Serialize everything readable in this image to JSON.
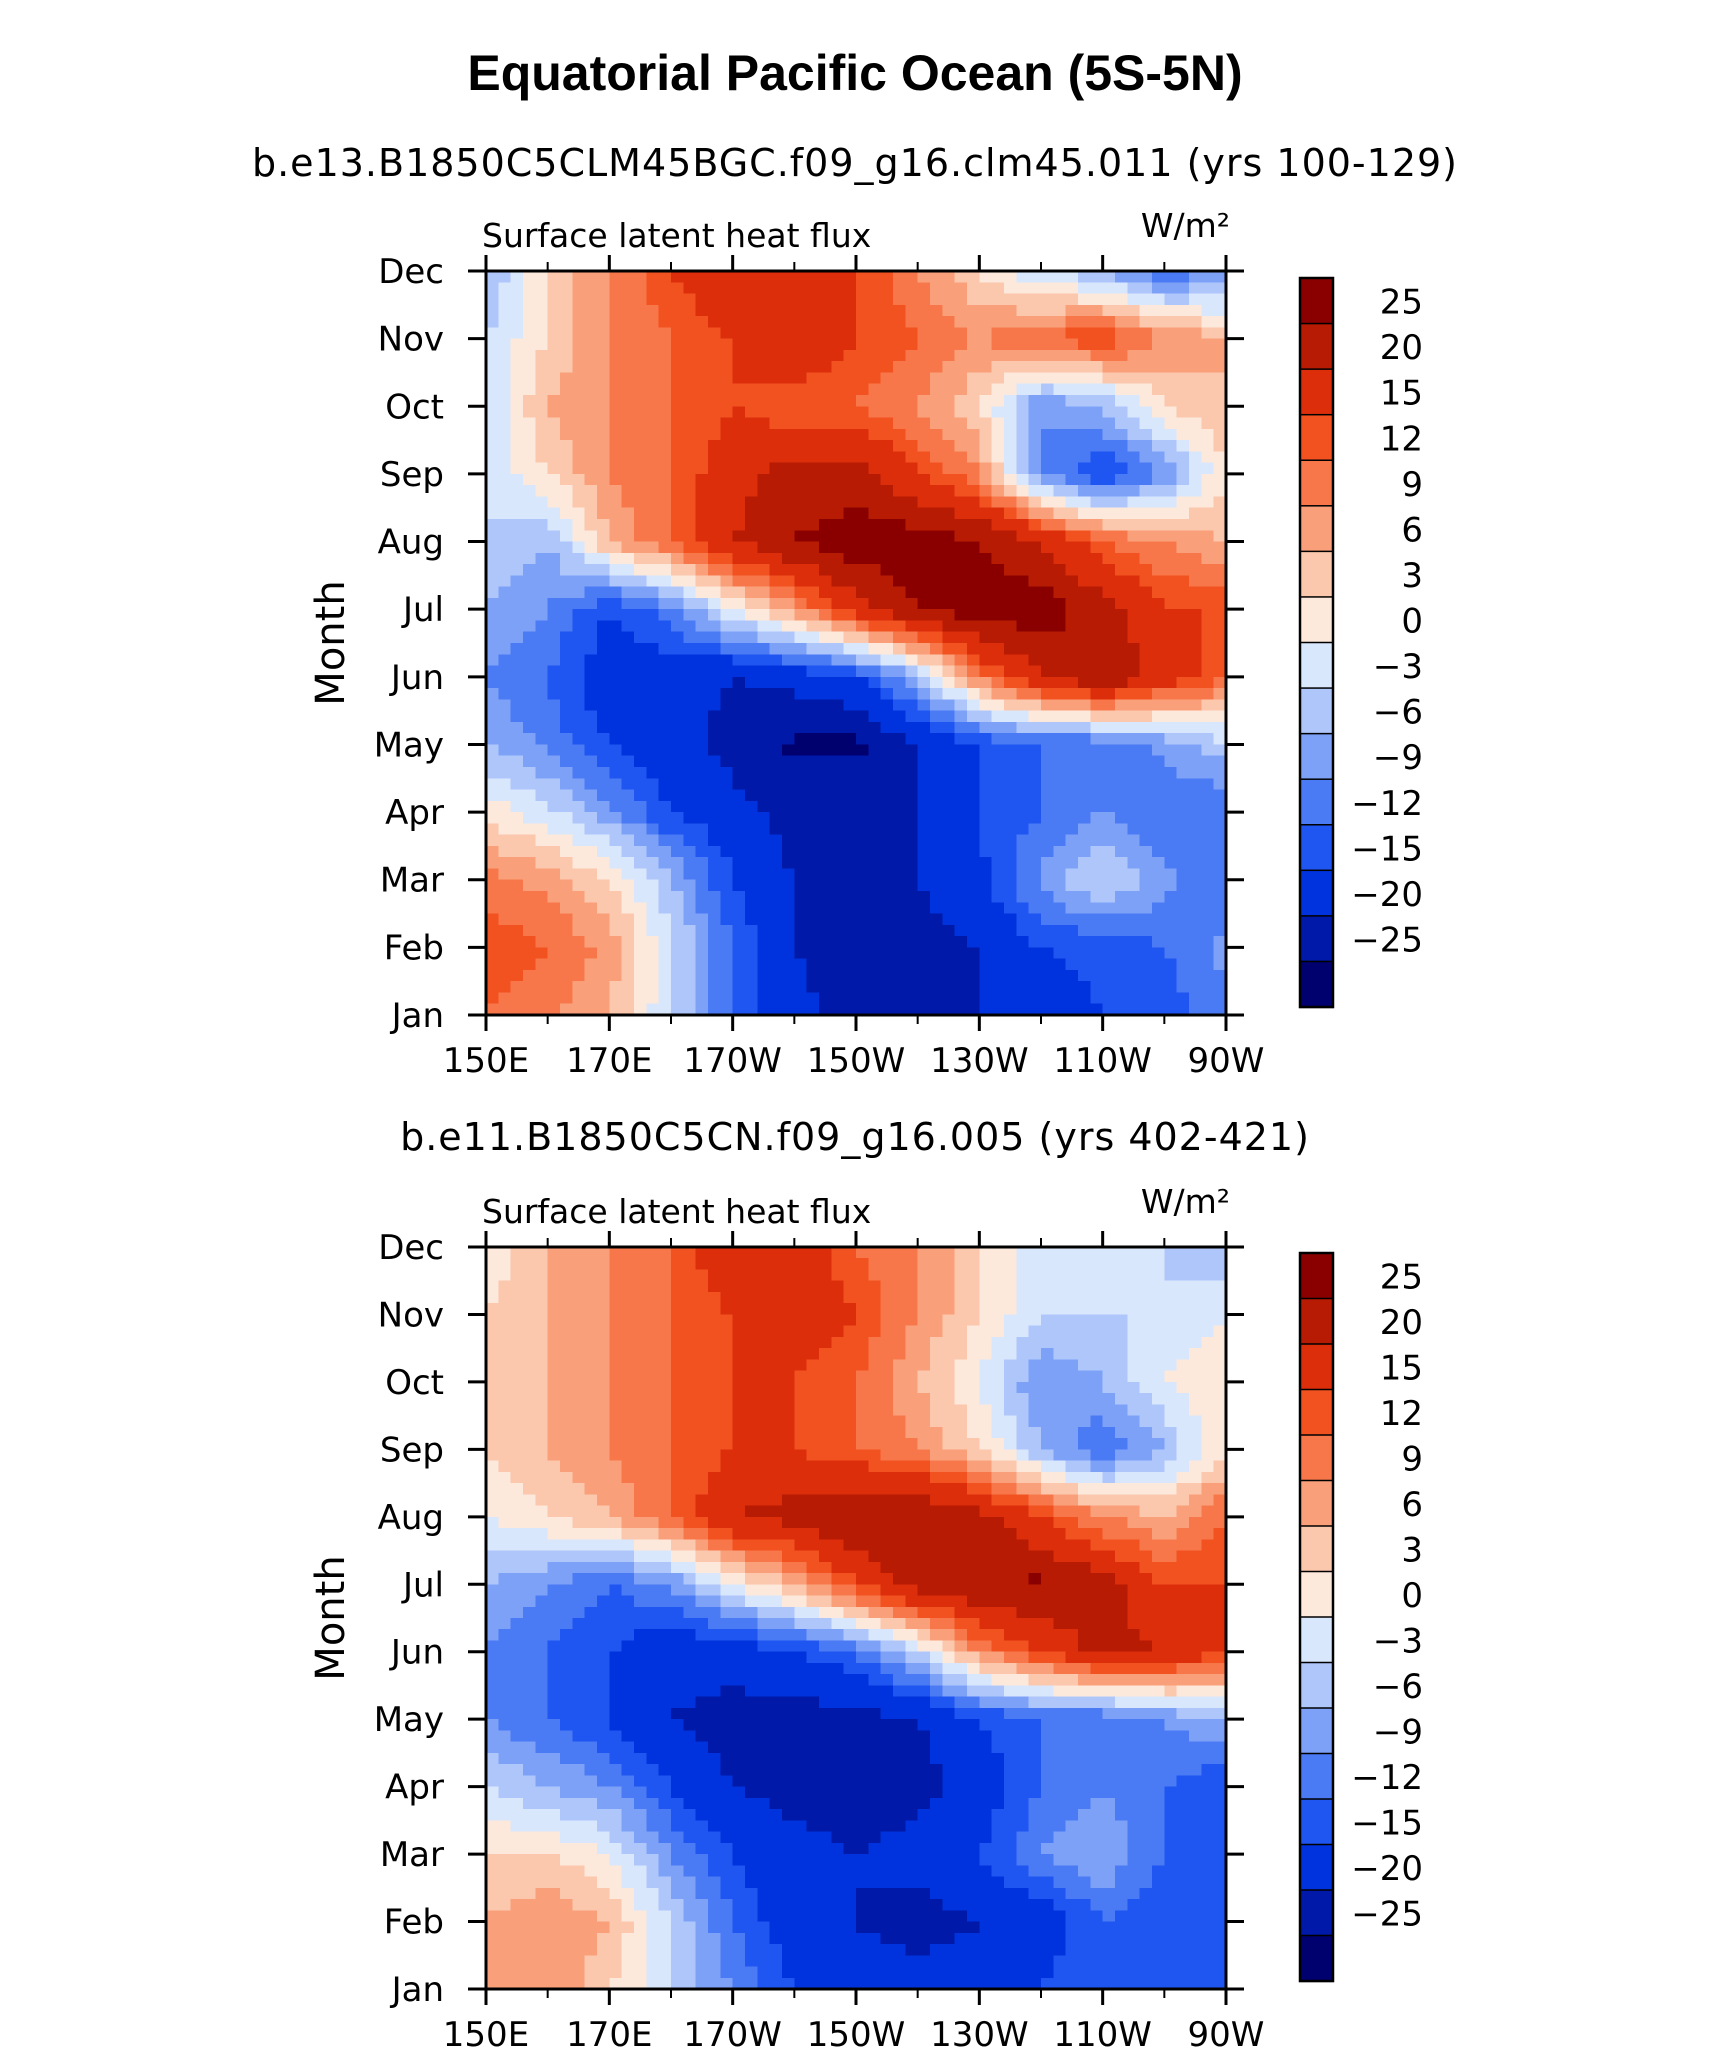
{
  "title": "Equatorial Pacific Ocean (5S-5N)",
  "chart_data": [
    {
      "type": "heatmap",
      "title": "b.e13.B1850C5CLM45BGC.f09_g16.clm45.011 (yrs 100-129)",
      "subtitle_left": "Surface latent heat flux",
      "units": "W/m²",
      "xlabel": "",
      "ylabel": "Month",
      "x_ticklabels": [
        "150E",
        "170E",
        "170W",
        "150W",
        "130W",
        "110W",
        "90W"
      ],
      "y_ticklabels": [
        "Jan",
        "Feb",
        "Mar",
        "Apr",
        "May",
        "Jun",
        "Jul",
        "Aug",
        "Sep",
        "Oct",
        "Nov",
        "Dec"
      ],
      "xlim": [
        150,
        270
      ],
      "levels": [
        -25,
        -20,
        -15,
        -12,
        -9,
        -6,
        -3,
        0,
        3,
        6,
        9,
        12,
        15,
        20,
        25
      ],
      "colorbar_labels": [
        "25",
        "20",
        "15",
        "12",
        "9",
        "6",
        "3",
        "0",
        "−3",
        "−6",
        "−9",
        "−12",
        "−15",
        "−20",
        "−25"
      ],
      "colors": [
        "#00006e",
        "#0019a8",
        "#0033dd",
        "#1f55f0",
        "#4a7bf5",
        "#7ea1f8",
        "#afc6fb",
        "#d9e7fd",
        "#fde9dc",
        "#fbc8ad",
        "#f9a07a",
        "#f7774a",
        "#f25220",
        "#dc2e0b",
        "#b81b04",
        "#8a0000"
      ],
      "x": [
        150,
        160,
        170,
        180,
        190,
        200,
        210,
        220,
        230,
        240,
        250,
        260,
        270
      ],
      "z": [
        [
          12,
          10,
          6,
          -3,
          -12,
          -18,
          -22,
          -22,
          -20,
          -18,
          -15,
          -14,
          -10
        ],
        [
          14,
          12,
          8,
          -2,
          -12,
          -20,
          -24,
          -22,
          -20,
          -15,
          -14,
          -12,
          -8
        ],
        [
          10,
          8,
          3,
          -6,
          -15,
          -20,
          -22,
          -20,
          -16,
          -8,
          -2,
          -8,
          -12
        ],
        [
          2,
          -2,
          -8,
          -15,
          -18,
          -22,
          -22,
          -20,
          -15,
          -12,
          -9,
          -12,
          -12
        ],
        [
          -6,
          -10,
          -15,
          -18,
          -22,
          -26,
          -26,
          -20,
          -15,
          -12,
          -12,
          -8,
          -4
        ],
        [
          -9,
          -12,
          -18,
          -18,
          -20,
          -18,
          -15,
          -6,
          10,
          20,
          25,
          18,
          12
        ],
        [
          -6,
          -9,
          -15,
          -10,
          0,
          8,
          18,
          25,
          28,
          28,
          22,
          15,
          15
        ],
        [
          -3,
          -6,
          6,
          12,
          20,
          25,
          28,
          28,
          25,
          20,
          12,
          9,
          6
        ],
        [
          -3,
          3,
          9,
          12,
          18,
          22,
          22,
          15,
          9,
          -9,
          -15,
          -9,
          3
        ],
        [
          -3,
          6,
          9,
          12,
          15,
          12,
          12,
          9,
          3,
          -9,
          -6,
          3,
          6
        ],
        [
          -3,
          3,
          9,
          12,
          15,
          20,
          15,
          12,
          9,
          12,
          15,
          9,
          6
        ],
        [
          -6,
          3,
          9,
          15,
          20,
          20,
          15,
          9,
          3,
          -3,
          -6,
          -12,
          -9
        ]
      ]
    },
    {
      "type": "heatmap",
      "title": "b.e11.B1850C5CN.f09_g16.005 (yrs 402-421)",
      "subtitle_left": "Surface latent heat flux",
      "units": "W/m²",
      "xlabel": "",
      "ylabel": "Month",
      "x_ticklabels": [
        "150E",
        "170E",
        "170W",
        "150W",
        "130W",
        "110W",
        "90W"
      ],
      "y_ticklabels": [
        "Jan",
        "Feb",
        "Mar",
        "Apr",
        "May",
        "Jun",
        "Jul",
        "Aug",
        "Sep",
        "Oct",
        "Nov",
        "Dec"
      ],
      "xlim": [
        150,
        270
      ],
      "levels": [
        -25,
        -20,
        -15,
        -12,
        -9,
        -6,
        -3,
        0,
        3,
        6,
        9,
        12,
        15,
        20,
        25
      ],
      "colorbar_labels": [
        "25",
        "20",
        "15",
        "12",
        "9",
        "6",
        "3",
        "0",
        "−3",
        "−6",
        "−9",
        "−12",
        "−15",
        "−20",
        "−25"
      ],
      "colors": [
        "#00006e",
        "#0019a8",
        "#0033dd",
        "#1f55f0",
        "#4a7bf5",
        "#7ea1f8",
        "#afc6fb",
        "#d9e7fd",
        "#fde9dc",
        "#fbc8ad",
        "#f9a07a",
        "#f7774a",
        "#f25220",
        "#dc2e0b",
        "#b81b04",
        "#8a0000"
      ],
      "x": [
        150,
        160,
        170,
        180,
        190,
        200,
        210,
        220,
        230,
        240,
        250,
        260,
        270
      ],
      "z": [
        [
          6,
          9,
          3,
          -3,
          -9,
          -15,
          -18,
          -18,
          -18,
          -15,
          -12,
          -15,
          -15
        ],
        [
          6,
          9,
          6,
          -3,
          -12,
          -18,
          -20,
          -22,
          -20,
          -18,
          -12,
          -15,
          -15
        ],
        [
          3,
          3,
          0,
          -9,
          -15,
          -18,
          -20,
          -18,
          -15,
          -9,
          -6,
          -12,
          -12
        ],
        [
          -3,
          -6,
          -9,
          -15,
          -20,
          -22,
          -24,
          -22,
          -18,
          -12,
          -9,
          -12,
          -15
        ],
        [
          -9,
          -12,
          -15,
          -20,
          -22,
          -22,
          -22,
          -20,
          -15,
          -12,
          -12,
          -9,
          -6
        ],
        [
          -9,
          -12,
          -15,
          -18,
          -18,
          -15,
          -12,
          -3,
          9,
          15,
          22,
          20,
          15
        ],
        [
          -6,
          -9,
          -12,
          -9,
          0,
          6,
          15,
          22,
          25,
          26,
          22,
          15,
          15
        ],
        [
          0,
          3,
          6,
          12,
          20,
          22,
          25,
          25,
          22,
          15,
          9,
          6,
          12
        ],
        [
          3,
          6,
          9,
          12,
          15,
          15,
          12,
          9,
          3,
          -6,
          -12,
          -6,
          3
        ],
        [
          3,
          6,
          9,
          12,
          15,
          15,
          12,
          6,
          0,
          -9,
          -6,
          0,
          3
        ],
        [
          3,
          6,
          9,
          12,
          15,
          18,
          15,
          9,
          3,
          -3,
          -3,
          -3,
          0
        ],
        [
          0,
          6,
          9,
          12,
          20,
          18,
          12,
          9,
          3,
          -3,
          -3,
          -3,
          -6
        ]
      ]
    }
  ]
}
